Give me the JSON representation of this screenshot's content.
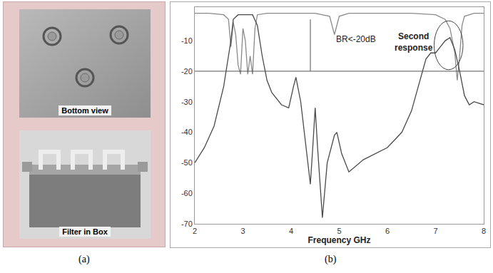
{
  "chart_data": {
    "type": "line",
    "x_label": "Frequency GHz",
    "xlim": [
      2,
      8
    ],
    "xticks": [
      2,
      3,
      4,
      5,
      6,
      7,
      8
    ],
    "ylim": [
      -70,
      1
    ],
    "yticks": [
      -70,
      -60,
      -50,
      -40,
      -30,
      -20,
      -10
    ],
    "grid": false,
    "series": [
      {
        "color": "#8a8a8a",
        "x": [
          2,
          2.3,
          2.6,
          2.7,
          2.75,
          2.8,
          2.85,
          2.9,
          2.95,
          3.0,
          3.05,
          3.1,
          3.15,
          3.2,
          3.25,
          3.3,
          3.5,
          4.0,
          4.5,
          4.8,
          4.9,
          5.0,
          5.2,
          6.0,
          6.5,
          7.0,
          7.2,
          7.3,
          7.4,
          7.45,
          7.5,
          7.55,
          7.6,
          7.8,
          8.0
        ],
        "values": [
          -1,
          -1,
          -1.5,
          -3,
          -12,
          -4,
          -8,
          -18,
          -21,
          -6,
          -10,
          -21,
          -15,
          -21,
          -6,
          -1.5,
          -1,
          -1,
          -1,
          -2,
          -8,
          -2,
          -1,
          -1,
          -1,
          -1.5,
          -3,
          -6,
          -14,
          -23,
          -15,
          -5,
          -2,
          -1,
          -1
        ]
      },
      {
        "color": "#4a4a4a",
        "x": [
          2.0,
          2.2,
          2.4,
          2.6,
          2.7,
          2.75,
          2.8,
          2.9,
          3.0,
          3.1,
          3.2,
          3.3,
          3.4,
          3.5,
          3.6,
          3.8,
          3.95,
          4.05,
          4.1,
          4.2,
          4.35,
          4.4,
          4.45,
          4.5,
          4.55,
          4.65,
          4.75,
          4.9,
          4.95,
          5.05,
          5.2,
          5.5,
          6.0,
          6.3,
          6.5,
          6.7,
          6.8,
          6.9,
          7.0,
          7.1,
          7.2,
          7.3,
          7.4,
          7.5,
          7.6,
          7.7,
          7.8,
          8.0
        ],
        "values": [
          -50,
          -45,
          -38,
          -25,
          -15,
          -10,
          -3,
          -1.5,
          -1.5,
          -1.5,
          -1.5,
          -5,
          -15,
          -23,
          -27,
          -31,
          -32,
          -25,
          -22,
          -30,
          -50,
          -57,
          -45,
          -32,
          -45,
          -68,
          -50,
          -41,
          -40,
          -47,
          -53,
          -49,
          -45,
          -40,
          -33,
          -22,
          -16,
          -14,
          -14,
          -12,
          -10,
          -9,
          -13,
          -20,
          -28,
          -31,
          -30,
          -31
        ]
      }
    ],
    "annotations": [
      {
        "text": "BR<-20dB",
        "x": 5.35,
        "y": -9.5
      },
      {
        "text": "Second response",
        "x": 6.55,
        "y": -10.5
      }
    ],
    "hline": -20,
    "vline": {
      "x": 4.4,
      "from": -3,
      "to": -20
    }
  },
  "figure": {
    "panel_labels": [
      "(a)",
      "(b)"
    ],
    "photo_captions": [
      "Bottom view",
      "Filter in Box"
    ]
  }
}
